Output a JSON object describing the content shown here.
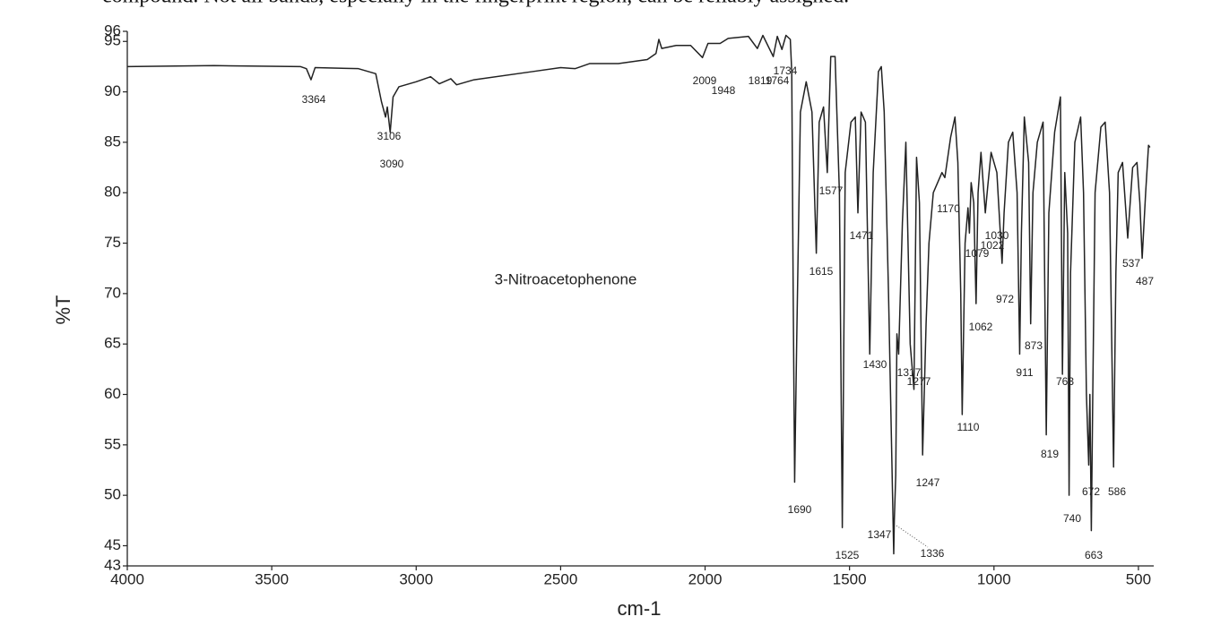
{
  "caption_fragment": "compound. Not all bands, especially in the fingerprint region, can be reliably assigned.",
  "chart_data": {
    "type": "line",
    "annotation": "3-Nitroacetophenone",
    "xlabel": "cm-1",
    "ylabel": "%T",
    "xlim": [
      4000,
      447
    ],
    "ylim": [
      43,
      96
    ],
    "xticks": [
      4000,
      3500,
      3000,
      2500,
      2000,
      1500,
      1000,
      500
    ],
    "yticks": [
      43,
      45,
      50,
      55,
      60,
      65,
      70,
      75,
      80,
      85,
      90,
      95,
      96
    ],
    "x": [
      4000,
      3700,
      3400,
      3380,
      3364,
      3350,
      3200,
      3140,
      3120,
      3106,
      3100,
      3090,
      3080,
      3060,
      3000,
      2950,
      2920,
      2880,
      2860,
      2800,
      2600,
      2500,
      2450,
      2400,
      2300,
      2200,
      2170,
      2160,
      2150,
      2100,
      2050,
      2009,
      1990,
      1948,
      1920,
      1850,
      1819,
      1800,
      1764,
      1750,
      1734,
      1720,
      1705,
      1700,
      1695,
      1690,
      1683,
      1670,
      1650,
      1630,
      1615,
      1605,
      1590,
      1577,
      1565,
      1550,
      1535,
      1525,
      1515,
      1495,
      1480,
      1471,
      1460,
      1445,
      1430,
      1418,
      1400,
      1390,
      1380,
      1365,
      1347,
      1345,
      1340,
      1336,
      1330,
      1317,
      1305,
      1290,
      1277,
      1268,
      1258,
      1247,
      1235,
      1225,
      1210,
      1180,
      1170,
      1150,
      1135,
      1125,
      1115,
      1110,
      1100,
      1090,
      1085,
      1079,
      1070,
      1062,
      1055,
      1045,
      1035,
      1030,
      1022,
      1010,
      1000,
      990,
      972,
      965,
      950,
      935,
      920,
      911,
      905,
      895,
      880,
      873,
      865,
      850,
      830,
      819,
      810,
      790,
      770,
      763,
      755,
      745,
      740,
      735,
      720,
      700,
      690,
      680,
      672,
      668,
      663,
      658,
      650,
      630,
      615,
      600,
      586,
      578,
      570,
      555,
      537,
      520,
      505,
      495,
      487,
      475,
      465,
      460
    ],
    "series": [
      {
        "color": "#222222",
        "values": [
          92.5,
          92.6,
          92.5,
          92.3,
          91.2,
          92.4,
          92.3,
          91.8,
          89,
          87.5,
          88.5,
          86,
          89.5,
          90.5,
          91,
          91.5,
          90.8,
          91.3,
          90.7,
          91.2,
          92,
          92.4,
          92.3,
          92.8,
          92.8,
          93.2,
          93.8,
          95.2,
          94.3,
          94.6,
          94.6,
          93.4,
          94.8,
          94.8,
          95.3,
          95.5,
          94.3,
          95.6,
          93.5,
          95.5,
          94.2,
          95.6,
          95.2,
          92,
          70,
          51.3,
          65,
          88,
          91,
          88,
          74,
          87,
          88.5,
          82,
          93.5,
          93.5,
          80,
          46.8,
          82,
          87,
          87.5,
          78,
          88,
          87,
          64,
          82,
          92,
          92.5,
          88,
          70,
          44.2,
          47.5,
          52,
          66,
          64,
          77,
          85,
          65,
          60.5,
          83.5,
          79,
          54,
          67,
          75,
          80,
          82,
          81.5,
          85.5,
          87.5,
          83,
          70,
          58,
          75,
          78.5,
          76,
          81,
          79,
          69,
          80,
          84,
          80,
          78,
          80.5,
          84,
          83,
          82,
          73,
          78,
          85,
          86,
          80,
          64,
          76,
          87.5,
          83,
          67,
          80,
          85,
          87,
          56,
          78,
          86,
          89.5,
          62,
          82,
          76,
          50,
          72,
          85,
          87.5,
          80,
          60,
          53,
          60,
          46.5,
          60,
          80,
          86.5,
          87,
          80,
          52.8,
          72,
          82,
          83,
          75.5,
          82.5,
          83,
          79,
          73.5,
          80,
          84.7,
          84.5
        ]
      }
    ],
    "peak_labels": [
      "3364",
      "3106",
      "3090",
      "2009",
      "1948",
      "1819",
      "1764",
      "1734",
      "1577",
      "1615",
      "1471",
      "1430",
      "1317",
      "1277",
      "1690",
      "1525",
      "1347",
      "1336",
      "1247",
      "1170",
      "1110",
      "1079",
      "1062",
      "1030",
      "1022",
      "972",
      "911",
      "873",
      "763",
      "819",
      "740",
      "672",
      "586",
      "663",
      "537",
      "487"
    ]
  }
}
